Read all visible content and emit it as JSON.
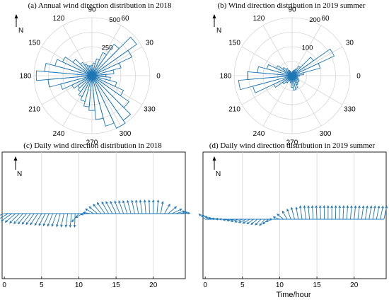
{
  "north_label": "N",
  "colors": {
    "series": "#1f77b4",
    "grid": "#d6d6d6",
    "axes": "#222222"
  },
  "chart_data": [
    {
      "id": "a",
      "type": "polar-histogram",
      "title": "(a) Annual wind direction distribution in 2018",
      "angle_ticks": [
        "0",
        "30",
        "60",
        "90",
        "120",
        "150",
        "180",
        "210",
        "240",
        "270",
        "300",
        "330"
      ],
      "radial_ticks": [
        "250",
        "500"
      ],
      "rlim": [
        0,
        500
      ],
      "bin_width_deg": 10,
      "angles_deg": [
        0,
        10,
        20,
        30,
        40,
        50,
        60,
        70,
        80,
        90,
        100,
        110,
        120,
        130,
        140,
        150,
        160,
        170,
        180,
        190,
        200,
        210,
        220,
        230,
        240,
        250,
        260,
        270,
        280,
        290,
        300,
        310,
        320,
        330,
        340,
        350
      ],
      "values": [
        120,
        190,
        260,
        380,
        470,
        330,
        220,
        150,
        110,
        90,
        80,
        90,
        110,
        140,
        200,
        280,
        330,
        410,
        480,
        380,
        280,
        190,
        150,
        170,
        200,
        230,
        270,
        300,
        380,
        450,
        500,
        470,
        390,
        300,
        220,
        160
      ]
    },
    {
      "id": "b",
      "type": "polar-histogram",
      "title": "(b) Wind direction distribution in 2019 summer",
      "angle_ticks": [
        "0",
        "30",
        "60",
        "90",
        "120",
        "150",
        "180",
        "210",
        "240",
        "270",
        "300",
        "330"
      ],
      "radial_ticks": [
        "100",
        "200"
      ],
      "rlim": [
        0,
        200
      ],
      "bin_width_deg": 10,
      "angles_deg": [
        0,
        10,
        20,
        30,
        40,
        50,
        60,
        70,
        80,
        90,
        100,
        110,
        120,
        130,
        140,
        150,
        160,
        170,
        180,
        190,
        200,
        210,
        220,
        230,
        240,
        250,
        260,
        270,
        280,
        290,
        300,
        310,
        320,
        330,
        340,
        350
      ],
      "values": [
        25,
        40,
        100,
        160,
        90,
        40,
        25,
        20,
        15,
        10,
        10,
        15,
        20,
        30,
        40,
        60,
        90,
        120,
        155,
        185,
        140,
        70,
        40,
        30,
        20,
        20,
        25,
        40,
        50,
        45,
        35,
        30,
        30,
        25,
        20,
        20
      ]
    },
    {
      "id": "c",
      "type": "quiver",
      "title": "(c) Daily wind direction distribution in 2018",
      "xlabel": "",
      "xticks": [
        "0",
        "5",
        "10",
        "15",
        "20"
      ],
      "xlim": [
        -0.3,
        24.3
      ],
      "x": [
        0,
        0.5,
        1,
        1.5,
        2,
        2.5,
        3,
        3.5,
        4,
        4.5,
        5,
        5.5,
        6,
        6.5,
        7,
        7.5,
        8,
        8.5,
        9,
        9.5,
        10,
        10.5,
        11,
        11.5,
        12,
        12.5,
        13,
        13.5,
        14,
        14.5,
        15,
        15.5,
        16,
        16.5,
        17,
        17.5,
        18,
        18.5,
        19,
        19.5,
        20,
        20.5,
        21,
        21.5,
        22,
        22.5,
        23,
        23.5,
        24
      ],
      "direction_deg": [
        200,
        210,
        215,
        220,
        225,
        228,
        230,
        232,
        234,
        236,
        240,
        242,
        245,
        248,
        250,
        255,
        258,
        262,
        265,
        268,
        230,
        210,
        190,
        170,
        150,
        140,
        130,
        125,
        120,
        118,
        115,
        112,
        110,
        108,
        105,
        102,
        100,
        98,
        95,
        92,
        90,
        85,
        80,
        60,
        40,
        25,
        15,
        10,
        5
      ],
      "magnitude": [
        0.9,
        0.9,
        0.95,
        1,
        1,
        1,
        1,
        1,
        1,
        1,
        1,
        1,
        1,
        1,
        1,
        1,
        1,
        1,
        1,
        1,
        0.8,
        0.6,
        0.4,
        0.5,
        0.7,
        0.8,
        0.9,
        1,
        1,
        1,
        1,
        1,
        1,
        1,
        1,
        1,
        1,
        1,
        1,
        1,
        1,
        1,
        0.9,
        0.8,
        0.8,
        0.8,
        0.7,
        0.6,
        0.5
      ]
    },
    {
      "id": "d",
      "type": "quiver",
      "title": "(d) Daily wind direction distribution in 2019 summer",
      "xlabel": "Time/hour",
      "xticks": [
        "0",
        "5",
        "10",
        "15",
        "20"
      ],
      "xlim": [
        -0.3,
        24.3
      ],
      "x": [
        0,
        0.5,
        1,
        1.5,
        2,
        2.5,
        3,
        3.5,
        4,
        4.5,
        5,
        5.5,
        6,
        6.5,
        7,
        7.5,
        8,
        8.5,
        9,
        9.5,
        10,
        10.5,
        11,
        11.5,
        12,
        12.5,
        13,
        13.5,
        14,
        14.5,
        15,
        15.5,
        16,
        16.5,
        17,
        17.5,
        18,
        18.5,
        19,
        19.5,
        20,
        20.5,
        21,
        21.5,
        22,
        22.5,
        23,
        23.5,
        24
      ],
      "direction_deg": [
        140,
        150,
        160,
        170,
        175,
        178,
        180,
        185,
        190,
        195,
        200,
        205,
        210,
        215,
        220,
        225,
        230,
        220,
        200,
        180,
        160,
        140,
        120,
        110,
        105,
        100,
        98,
        96,
        95,
        94,
        93,
        92,
        91,
        90,
        90,
        89,
        88,
        87,
        86,
        85,
        84,
        83,
        82,
        81,
        80,
        80,
        79,
        78,
        78
      ],
      "magnitude": [
        0.6,
        0.6,
        0.6,
        0.6,
        0.6,
        0.6,
        0.6,
        0.6,
        0.6,
        0.6,
        0.6,
        0.6,
        0.6,
        0.6,
        0.6,
        0.6,
        0.6,
        0.55,
        0.5,
        0.5,
        0.5,
        0.6,
        0.7,
        0.8,
        0.9,
        0.9,
        1,
        1,
        1,
        1,
        1,
        1,
        1,
        1,
        1,
        1,
        1,
        1,
        1,
        1,
        1,
        1,
        1,
        1,
        1,
        1,
        1,
        1,
        1
      ]
    }
  ]
}
